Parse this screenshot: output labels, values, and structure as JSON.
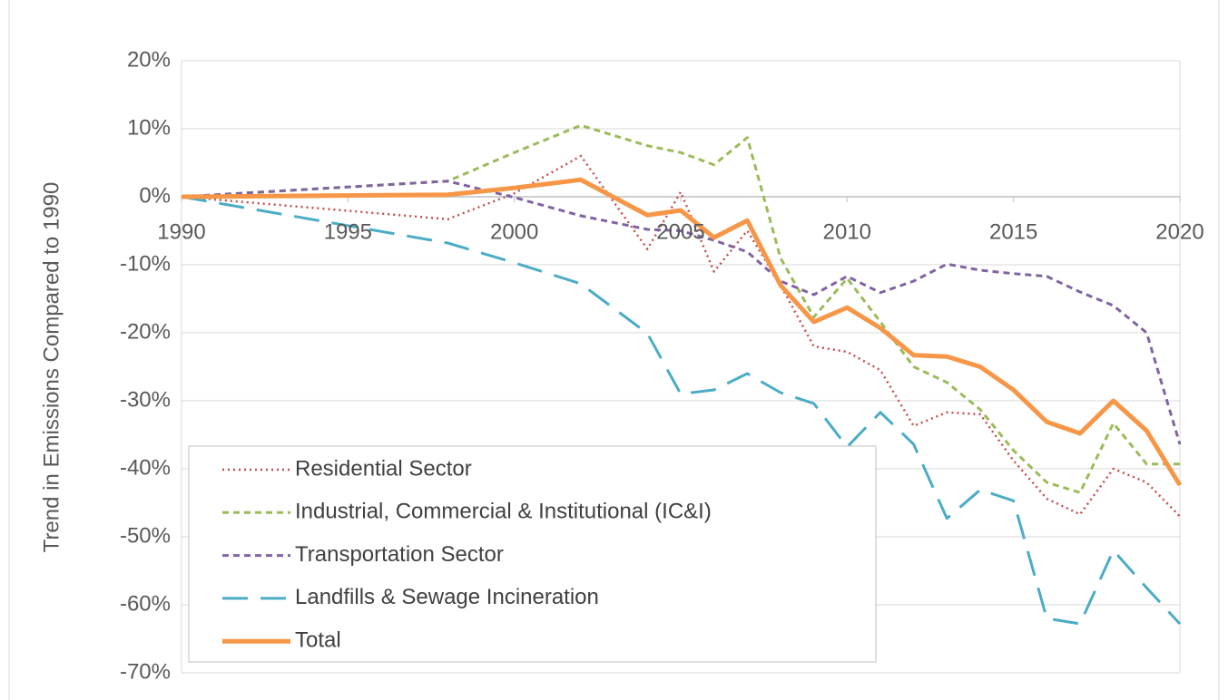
{
  "chart_data": {
    "type": "line",
    "y_label": "Trend in Emissions Compared to 1990",
    "x": [
      1990,
      1998,
      2000,
      2002,
      2004,
      2005,
      2006,
      2007,
      2008,
      2009,
      2010,
      2011,
      2012,
      2013,
      2014,
      2015,
      2016,
      2017,
      2018,
      2019,
      2020
    ],
    "xlim": [
      1990,
      2020
    ],
    "xticks": [
      1990,
      1995,
      2000,
      2005,
      2010,
      2015,
      2020
    ],
    "ylim": [
      -70,
      20
    ],
    "yticks": [
      {
        "value": 20,
        "label": "20%"
      },
      {
        "value": 10,
        "label": "10%"
      },
      {
        "value": 0,
        "label": "0%"
      },
      {
        "value": -10,
        "label": "-10%"
      },
      {
        "value": -20,
        "label": "-20%"
      },
      {
        "value": -30,
        "label": "-30%"
      },
      {
        "value": -40,
        "label": "-40%"
      },
      {
        "value": -50,
        "label": "-50%"
      },
      {
        "value": -60,
        "label": "-60%"
      },
      {
        "value": -70,
        "label": "-70%"
      }
    ],
    "grid": true,
    "legend": "lower left",
    "series": [
      {
        "name": "Residential Sector",
        "color": "#c0504d",
        "style": "dotted",
        "values": [
          0,
          -3.3,
          0.5,
          6,
          -7.7,
          0.7,
          -11,
          -5,
          -13,
          -22,
          -22.8,
          -25.5,
          -33.7,
          -31.7,
          -32,
          -38.8,
          -44.4,
          -46.7,
          -40,
          -42,
          -47
        ]
      },
      {
        "name": "Industrial, Commercial & Institutional (IC&I)",
        "color": "#9bbb59",
        "style": "dashed",
        "values": [
          0,
          2.3,
          6.5,
          10.5,
          7.5,
          6.5,
          4.7,
          8.7,
          -9,
          -17.7,
          -12,
          -18.4,
          -25,
          -27.3,
          -31.3,
          -37.3,
          -42,
          -43.5,
          -33.3,
          -39.3,
          -39.3
        ]
      },
      {
        "name": "Transportation Sector",
        "color": "#8064a2",
        "style": "dashed",
        "values": [
          0,
          2.3,
          -0.1,
          -2.8,
          -4.8,
          -5,
          -6.4,
          -8.1,
          -12.4,
          -14.4,
          -11.7,
          -14.1,
          -12.4,
          -9.9,
          -10.8,
          -11.3,
          -11.7,
          -14,
          -16,
          -20,
          -36.4
        ]
      },
      {
        "name": "Landfills & Sewage Incineration",
        "color": "#4bacc6",
        "style": "longdash",
        "values": [
          0,
          -6.8,
          -9.7,
          -12.8,
          -20.1,
          -29,
          -28.4,
          -26,
          -28.8,
          -30.4,
          -36.8,
          -31.7,
          -36.4,
          -47.3,
          -43.1,
          -44.7,
          -62,
          -62.8,
          -52,
          -57.5,
          -62.8
        ]
      },
      {
        "name": "Total",
        "color": "#f79646",
        "style": "solid",
        "values": [
          0,
          0.3,
          1.3,
          2.5,
          -2.7,
          -2,
          -6,
          -3.5,
          -13,
          -18.4,
          -16.3,
          -19.3,
          -23.3,
          -23.5,
          -25,
          -28.4,
          -33.1,
          -34.8,
          -30,
          -34.4,
          -42.4
        ]
      }
    ]
  }
}
